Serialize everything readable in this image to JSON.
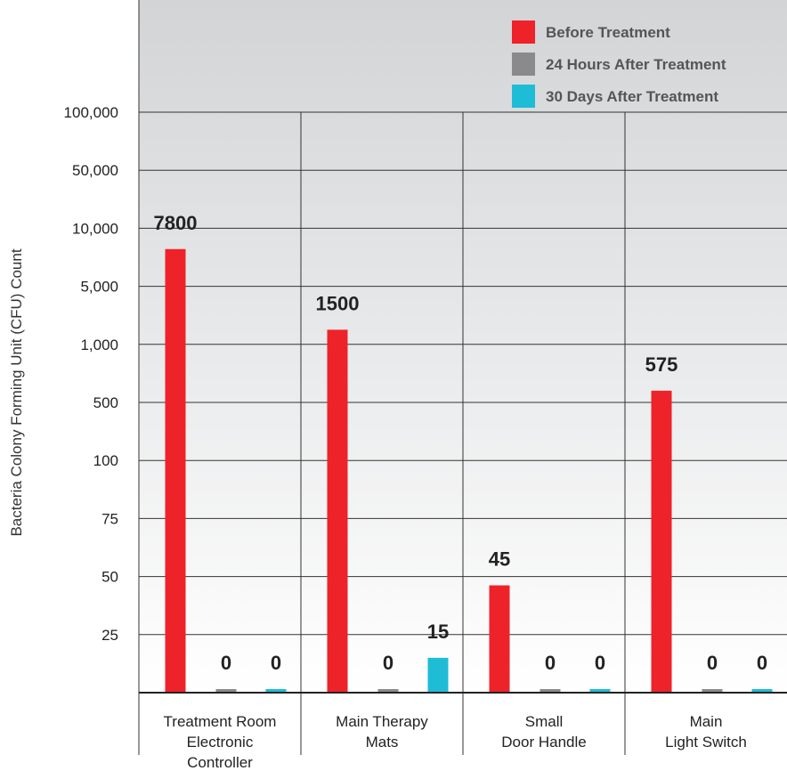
{
  "chart_data": {
    "type": "bar",
    "title": "",
    "ylabel": "Bacteria Colony Forming Unit (CFU) Count",
    "xlabel": "",
    "y_scale": "categorical-log",
    "y_ticks": [
      "25",
      "50",
      "75",
      "100",
      "500",
      "1,000",
      "5,000",
      "10,000",
      "50,000",
      "100,000"
    ],
    "y_tick_values": [
      25,
      50,
      75,
      100,
      500,
      1000,
      5000,
      10000,
      50000,
      100000
    ],
    "categories": [
      [
        "Treatment Room",
        "Electronic",
        "Controller"
      ],
      [
        "Main Therapy",
        "Mats"
      ],
      [
        "Small",
        "Door Handle"
      ],
      [
        "Main",
        "Light Switch"
      ]
    ],
    "series": [
      {
        "name": "Before Treatment",
        "color": "#ee2229",
        "values": [
          7800,
          1500,
          45,
          575
        ],
        "labels": [
          "7800",
          "1500",
          "45",
          "575"
        ]
      },
      {
        "name": "24 Hours After Treatment",
        "color": "#8a8a8c",
        "values": [
          0,
          0,
          0,
          0
        ],
        "labels": [
          "0",
          "0",
          "0",
          "0"
        ]
      },
      {
        "name": "30 Days After Treatment",
        "color": "#1fbcd6",
        "values": [
          0,
          15,
          0,
          0
        ],
        "labels": [
          "0",
          "15",
          "0",
          "0"
        ]
      }
    ],
    "legend_position": "top-right",
    "grid": true
  }
}
